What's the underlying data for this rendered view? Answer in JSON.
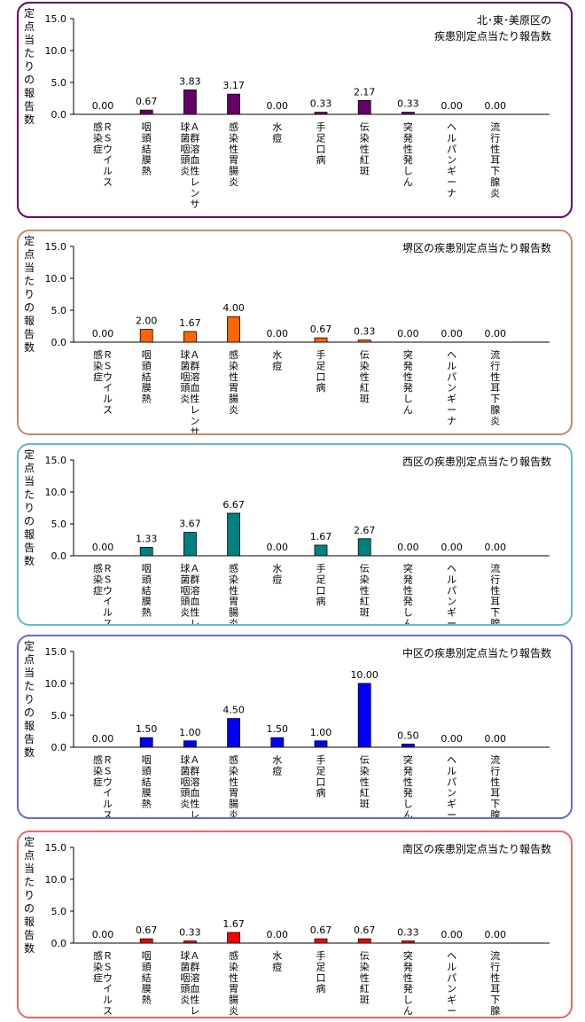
{
  "ylabel": "定点当たりの報告数",
  "categories": [
    [
      "Ｒ",
      "Ｓ",
      "ウ",
      "イ",
      "ル",
      "ス",
      "|",
      "感",
      "染",
      "症"
    ],
    [
      "咽",
      "頭",
      "結",
      "膜",
      "熱"
    ],
    [
      "Ａ",
      "群",
      "溶",
      "血",
      "性",
      "レ",
      "ン",
      "サ",
      "|",
      "球",
      "菌",
      "咽",
      "頭",
      "炎"
    ],
    [
      "感",
      "染",
      "性",
      "胃",
      "腸",
      "炎"
    ],
    [
      "水",
      "痘"
    ],
    [
      "手",
      "足",
      "口",
      "病"
    ],
    [
      "伝",
      "染",
      "性",
      "紅",
      "斑"
    ],
    [
      "突",
      "発",
      "性",
      "発",
      "し",
      "ん"
    ],
    [
      "ヘ",
      "ル",
      "パ",
      "ン",
      "ギ",
      "ー",
      "ナ"
    ],
    [
      "流",
      "行",
      "性",
      "耳",
      "下",
      "腺",
      "炎"
    ]
  ],
  "chart_data": [
    {
      "type": "bar",
      "title": "北･東･美原区の\n疾患別定点当たり報告数",
      "ylabel": "定点当たりの報告数",
      "ylim": [
        0,
        15
      ],
      "yticks": [
        "0.0",
        "5.0",
        "10.0",
        "15.0"
      ],
      "color": "#660066",
      "border": "#660066",
      "values": [
        0.0,
        0.67,
        3.83,
        3.17,
        0.0,
        0.33,
        2.17,
        0.33,
        0.0,
        0.0
      ],
      "labels": [
        "0.00",
        "0.67",
        "3.83",
        "3.17",
        "0.00",
        "0.33",
        "2.17",
        "0.33",
        "0.00",
        "0.00"
      ]
    },
    {
      "type": "bar",
      "title": "堺区の疾患別定点当たり報告数",
      "ylabel": "定点当たりの報告数",
      "ylim": [
        0,
        15
      ],
      "yticks": [
        "0.0",
        "5.0",
        "10.0",
        "15.0"
      ],
      "color": "#ff6600",
      "border": "#cc8866",
      "values": [
        0.0,
        2.0,
        1.67,
        4.0,
        0.0,
        0.67,
        0.33,
        0.0,
        0.0,
        0.0
      ],
      "labels": [
        "0.00",
        "2.00",
        "1.67",
        "4.00",
        "0.00",
        "0.67",
        "0.33",
        "0.00",
        "0.00",
        "0.00"
      ]
    },
    {
      "type": "bar",
      "title": "西区の疾患別定点当たり報告数",
      "ylabel": "定点当たりの報告数",
      "ylim": [
        0,
        15
      ],
      "yticks": [
        "0.0",
        "5.0",
        "10.0",
        "15.0"
      ],
      "color": "#008080",
      "border": "#66bbbb",
      "values": [
        0.0,
        1.33,
        3.67,
        6.67,
        0.0,
        1.67,
        2.67,
        0.0,
        0.0,
        0.0
      ],
      "labels": [
        "0.00",
        "1.33",
        "3.67",
        "6.67",
        "0.00",
        "1.67",
        "2.67",
        "0.00",
        "0.00",
        "0.00"
      ]
    },
    {
      "type": "bar",
      "title": "中区の疾患別定点当たり報告数",
      "ylabel": "定点当たりの報告数",
      "ylim": [
        0,
        15
      ],
      "yticks": [
        "0.0",
        "5.0",
        "10.0",
        "15.0"
      ],
      "color": "#0000ff",
      "border": "#6666dd",
      "values": [
        0.0,
        1.5,
        1.0,
        4.5,
        1.5,
        1.0,
        10.0,
        0.5,
        0.0,
        0.0
      ],
      "labels": [
        "0.00",
        "1.50",
        "1.00",
        "4.50",
        "1.50",
        "1.00",
        "10.00",
        "0.50",
        "0.00",
        "0.00"
      ]
    },
    {
      "type": "bar",
      "title": "南区の疾患別定点当たり報告数",
      "ylabel": "定点当たりの報告数",
      "ylim": [
        0,
        15
      ],
      "yticks": [
        "0.0",
        "5.0",
        "10.0",
        "15.0"
      ],
      "color": "#ff0000",
      "border": "#ee6666",
      "values": [
        0.0,
        0.67,
        0.33,
        1.67,
        0.0,
        0.67,
        0.67,
        0.33,
        0.0,
        0.0
      ],
      "labels": [
        "0.00",
        "0.67",
        "0.33",
        "1.67",
        "0.00",
        "0.67",
        "0.67",
        "0.33",
        "0.00",
        "0.00"
      ]
    }
  ]
}
